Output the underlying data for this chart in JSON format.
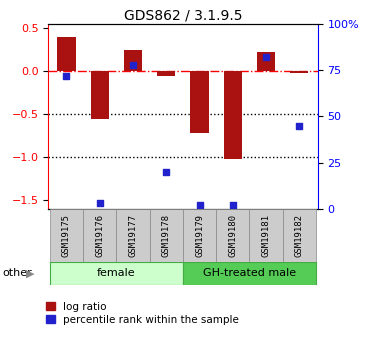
{
  "title": "GDS862 / 3.1.9.5",
  "samples": [
    "GSM19175",
    "GSM19176",
    "GSM19177",
    "GSM19178",
    "GSM19179",
    "GSM19180",
    "GSM19181",
    "GSM19182"
  ],
  "log_ratio": [
    0.4,
    -0.55,
    0.25,
    -0.05,
    -0.72,
    -1.02,
    0.22,
    -0.02
  ],
  "percentile_rank": [
    72,
    3,
    78,
    20,
    2,
    2,
    82,
    45
  ],
  "groups": [
    {
      "label": "female",
      "start": 0,
      "end": 4,
      "color": "#ccffcc"
    },
    {
      "label": "GH-treated male",
      "start": 4,
      "end": 8,
      "color": "#55cc55"
    }
  ],
  "bar_color": "#aa1111",
  "dot_color": "#2222cc",
  "ylim_left": [
    -1.6,
    0.55
  ],
  "ylim_right": [
    0,
    100
  ],
  "yticks_left": [
    -1.5,
    -1.0,
    -0.5,
    0.0,
    0.5
  ],
  "yticks_right": [
    0,
    25,
    50,
    75,
    100
  ],
  "bar_width": 0.55,
  "label_box_color": "#cccccc",
  "label_box_edge": "#888888",
  "other_label": "other",
  "legend_labels": [
    "log ratio",
    "percentile rank within the sample"
  ]
}
